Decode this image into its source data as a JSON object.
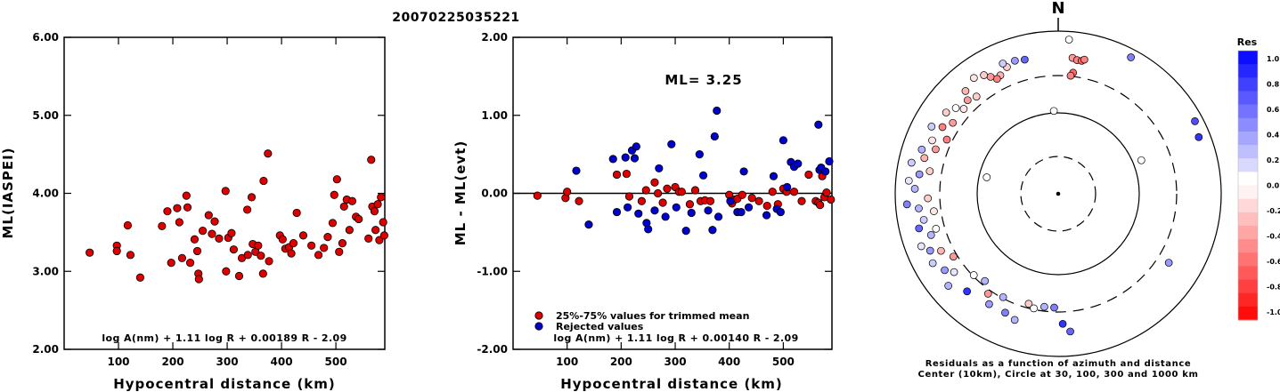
{
  "page_title": "20070225035221",
  "colors": {
    "red_point": "#dd0000",
    "blue_point": "#0000cc"
  },
  "chart_data": [
    {
      "type": "scatter",
      "xlabel": "Hypocentral distance (km)",
      "ylabel": "ML(IASPEI)",
      "xlim": [
        0,
        590
      ],
      "ylim": [
        2.0,
        6.0
      ],
      "xticks": [
        "100",
        "200",
        "300",
        "400",
        "500"
      ],
      "yticks": [
        "2.00",
        "3.00",
        "4.00",
        "5.00",
        "6.00"
      ],
      "formula": "log A(nm) + 1.11 log R + 0.00189 R - 2.09",
      "series": [
        {
          "color": "red",
          "points": [
            [
              47,
              3.24
            ],
            [
              97,
              3.33
            ],
            [
              97,
              3.26
            ],
            [
              117,
              3.59
            ],
            [
              122,
              3.21
            ],
            [
              140,
              2.92
            ],
            [
              180,
              3.58
            ],
            [
              190,
              3.77
            ],
            [
              197,
              3.11
            ],
            [
              208,
              3.81
            ],
            [
              212,
              3.63
            ],
            [
              217,
              3.17
            ],
            [
              225,
              3.97
            ],
            [
              227,
              3.82
            ],
            [
              232,
              3.11
            ],
            [
              240,
              3.41
            ],
            [
              245,
              3.26
            ],
            [
              247,
              2.97
            ],
            [
              248,
              2.9
            ],
            [
              255,
              3.52
            ],
            [
              266,
              3.72
            ],
            [
              272,
              3.48
            ],
            [
              277,
              3.64
            ],
            [
              285,
              3.42
            ],
            [
              297,
              4.03
            ],
            [
              298,
              3.0
            ],
            [
              302,
              3.43
            ],
            [
              308,
              3.49
            ],
            [
              312,
              3.28
            ],
            [
              322,
              2.94
            ],
            [
              327,
              3.17
            ],
            [
              337,
              3.79
            ],
            [
              338,
              3.21
            ],
            [
              345,
              3.95
            ],
            [
              347,
              3.35
            ],
            [
              352,
              3.25
            ],
            [
              357,
              3.33
            ],
            [
              362,
              3.2
            ],
            [
              366,
              2.97
            ],
            [
              367,
              4.16
            ],
            [
              375,
              4.51
            ],
            [
              377,
              3.13
            ],
            [
              397,
              3.46
            ],
            [
              402,
              3.41
            ],
            [
              407,
              3.29
            ],
            [
              414,
              3.31
            ],
            [
              418,
              3.23
            ],
            [
              422,
              3.36
            ],
            [
              428,
              3.75
            ],
            [
              440,
              3.46
            ],
            [
              455,
              3.33
            ],
            [
              468,
              3.21
            ],
            [
              478,
              3.3
            ],
            [
              485,
              3.44
            ],
            [
              494,
              3.62
            ],
            [
              497,
              3.98
            ],
            [
              502,
              4.18
            ],
            [
              506,
              3.25
            ],
            [
              512,
              3.36
            ],
            [
              515,
              3.83
            ],
            [
              520,
              3.92
            ],
            [
              525,
              3.53
            ],
            [
              530,
              3.9
            ],
            [
              537,
              3.7
            ],
            [
              542,
              3.67
            ],
            [
              560,
              3.42
            ],
            [
              565,
              4.43
            ],
            [
              567,
              3.83
            ],
            [
              571,
              3.77
            ],
            [
              573,
              3.53
            ],
            [
              577,
              3.86
            ],
            [
              580,
              3.4
            ],
            [
              583,
              3.95
            ],
            [
              587,
              3.63
            ],
            [
              589,
              3.46
            ]
          ]
        }
      ]
    },
    {
      "type": "scatter",
      "xlabel": "Hypocentral distance (km)",
      "ylabel": "ML - ML(evt)",
      "xlim": [
        0,
        590
      ],
      "ylim": [
        -2.0,
        2.0
      ],
      "xticks": [
        "100",
        "200",
        "300",
        "400",
        "500"
      ],
      "yticks": [
        "-2.00",
        "-1.00",
        "0.00",
        "1.00",
        "2.00"
      ],
      "annotation": "ML= 3.25",
      "formula": "log A(nm) + 1.11 log R + 0.00140 R - 2.09",
      "legend": [
        "25%-75% values for trimmed mean",
        "Rejected values"
      ],
      "series": [
        {
          "color": "red",
          "points": [
            [
              45,
              -0.03
            ],
            [
              97,
              -0.06
            ],
            [
              100,
              0.02
            ],
            [
              122,
              -0.1
            ],
            [
              192,
              0.24
            ],
            [
              210,
              0.25
            ],
            [
              215,
              -0.04
            ],
            [
              238,
              -0.1
            ],
            [
              246,
              0.04
            ],
            [
              262,
              0.14
            ],
            [
              268,
              0.0
            ],
            [
              277,
              -0.12
            ],
            [
              285,
              0.06
            ],
            [
              300,
              0.08
            ],
            [
              307,
              0.02
            ],
            [
              312,
              0.02
            ],
            [
              327,
              -0.14
            ],
            [
              337,
              0.04
            ],
            [
              347,
              -0.1
            ],
            [
              355,
              -0.09
            ],
            [
              365,
              -0.1
            ],
            [
              400,
              -0.02
            ],
            [
              405,
              -0.13
            ],
            [
              410,
              -0.08
            ],
            [
              415,
              -0.07
            ],
            [
              424,
              -0.02
            ],
            [
              442,
              -0.06
            ],
            [
              455,
              -0.1
            ],
            [
              470,
              -0.16
            ],
            [
              480,
              0.02
            ],
            [
              490,
              -0.14
            ],
            [
              500,
              0.06
            ],
            [
              506,
              0.02
            ],
            [
              520,
              0.02
            ],
            [
              534,
              -0.1
            ],
            [
              547,
              0.24
            ],
            [
              560,
              -0.1
            ],
            [
              565,
              -0.12
            ],
            [
              568,
              -0.15
            ],
            [
              572,
              0.22
            ],
            [
              576,
              -0.05
            ],
            [
              580,
              0.01
            ],
            [
              588,
              -0.08
            ]
          ]
        },
        {
          "color": "blue",
          "points": [
            [
              117,
              0.29
            ],
            [
              140,
              -0.4
            ],
            [
              185,
              0.44
            ],
            [
              192,
              -0.24
            ],
            [
              208,
              0.46
            ],
            [
              212,
              -0.18
            ],
            [
              220,
              0.55
            ],
            [
              225,
              0.45
            ],
            [
              228,
              0.6
            ],
            [
              232,
              -0.26
            ],
            [
              247,
              -0.38
            ],
            [
              250,
              -0.46
            ],
            [
              262,
              -0.22
            ],
            [
              270,
              0.32
            ],
            [
              282,
              -0.3
            ],
            [
              293,
              0.63
            ],
            [
              302,
              -0.18
            ],
            [
              320,
              -0.48
            ],
            [
              330,
              -0.25
            ],
            [
              345,
              0.5
            ],
            [
              352,
              0.23
            ],
            [
              361,
              -0.22
            ],
            [
              369,
              -0.47
            ],
            [
              373,
              0.73
            ],
            [
              377,
              1.06
            ],
            [
              380,
              -0.3
            ],
            [
              402,
              -0.1
            ],
            [
              415,
              -0.24
            ],
            [
              422,
              -0.24
            ],
            [
              427,
              0.28
            ],
            [
              436,
              -0.18
            ],
            [
              469,
              -0.28
            ],
            [
              482,
              0.22
            ],
            [
              488,
              -0.2
            ],
            [
              495,
              -0.24
            ],
            [
              500,
              0.68
            ],
            [
              507,
              0.08
            ],
            [
              514,
              0.4
            ],
            [
              520,
              0.34
            ],
            [
              527,
              0.38
            ],
            [
              565,
              0.88
            ],
            [
              567,
              0.3
            ],
            [
              570,
              0.33
            ],
            [
              578,
              0.28
            ],
            [
              585,
              0.41
            ]
          ]
        }
      ]
    },
    {
      "type": "scatter",
      "subtype": "polar",
      "north_label": "N",
      "colorbar_title": "Res",
      "colorbar_ticks": [
        "1.0",
        "0.8",
        "0.6",
        "0.4",
        "0.2",
        "0.0",
        "-0.2",
        "-0.4",
        "-0.6",
        "-0.8",
        "-1.0"
      ],
      "caption": [
        "Residuals as a function of azimuth and distance",
        "Center (10km), Circle at 30, 100, 300 and 1000 km"
      ],
      "points": [
        [
          4,
          0.95,
          0.0
        ],
        [
          357,
          0.51,
          0.0
        ],
        [
          68,
          0.55,
          0.0
        ],
        [
          283,
          0.45,
          0.0
        ],
        [
          6,
          0.84,
          -0.4
        ],
        [
          8,
          0.83,
          -0.5
        ],
        [
          10,
          0.83,
          -0.6
        ],
        [
          11,
          0.84,
          -0.5
        ],
        [
          7,
          0.75,
          -0.6
        ],
        [
          6,
          0.73,
          -0.5
        ],
        [
          346,
          0.85,
          0.6
        ],
        [
          342,
          0.86,
          0.4
        ],
        [
          338,
          0.84,
          -0.2
        ],
        [
          337,
          0.87,
          0.2
        ],
        [
          334,
          0.81,
          -0.3
        ],
        [
          332,
          0.8,
          -0.5
        ],
        [
          330,
          0.83,
          -0.4
        ],
        [
          328,
          0.86,
          -0.2
        ],
        [
          324,
          0.88,
          -0.1
        ],
        [
          320,
          0.78,
          -0.2
        ],
        [
          318,
          0.85,
          -0.3
        ],
        [
          316,
          0.8,
          -0.4
        ],
        [
          312,
          0.78,
          -0.1
        ],
        [
          310,
          0.82,
          0.0
        ],
        [
          306,
          0.85,
          -0.2
        ],
        [
          304,
          0.78,
          -0.4
        ],
        [
          300,
          0.82,
          -0.5
        ],
        [
          298,
          0.88,
          0.2
        ],
        [
          296,
          0.76,
          -0.5
        ],
        [
          293,
          0.84,
          -0.1
        ],
        [
          290,
          0.8,
          -0.4
        ],
        [
          288,
          0.88,
          0.3
        ],
        [
          285,
          0.85,
          -0.3
        ],
        [
          282,
          0.92,
          0.2
        ],
        [
          280,
          0.8,
          -0.2
        ],
        [
          278,
          0.86,
          0.4
        ],
        [
          275,
          0.92,
          0.1
        ],
        [
          272,
          0.88,
          0.3
        ],
        [
          268,
          0.8,
          -0.2
        ],
        [
          266,
          0.93,
          0.5
        ],
        [
          264,
          0.86,
          0.3
        ],
        [
          262,
          0.77,
          -0.1
        ],
        [
          259,
          0.84,
          0.2
        ],
        [
          256,
          0.88,
          0.6
        ],
        [
          254,
          0.78,
          0.0
        ],
        [
          252,
          0.82,
          0.3
        ],
        [
          249,
          0.9,
          0.1
        ],
        [
          246,
          0.86,
          0.4
        ],
        [
          244,
          0.8,
          -0.3
        ],
        [
          241,
          0.88,
          0.2
        ],
        [
          239,
          0.75,
          -0.4
        ],
        [
          236,
          0.84,
          0.4
        ],
        [
          233,
          0.8,
          0.1
        ],
        [
          230,
          0.88,
          0.3
        ],
        [
          226,
          0.72,
          0.0
        ],
        [
          223,
          0.82,
          0.8
        ],
        [
          220,
          0.7,
          0.3
        ],
        [
          215,
          0.75,
          -0.4
        ],
        [
          212,
          0.8,
          0.4
        ],
        [
          208,
          0.72,
          0.3
        ],
        [
          204,
          0.8,
          0.5
        ],
        [
          199,
          0.82,
          0.3
        ],
        [
          195,
          0.7,
          -0.2
        ],
        [
          192,
          0.72,
          0.0
        ],
        [
          187,
          0.7,
          0.3
        ],
        [
          182,
          0.7,
          0.5
        ],
        [
          178,
          0.8,
          0.8
        ],
        [
          175,
          0.85,
          0.6
        ],
        [
          122,
          0.8,
          0.4
        ],
        [
          62,
          0.95,
          0.7
        ],
        [
          68,
          0.93,
          0.8
        ],
        [
          28,
          0.95,
          0.5
        ]
      ]
    }
  ]
}
